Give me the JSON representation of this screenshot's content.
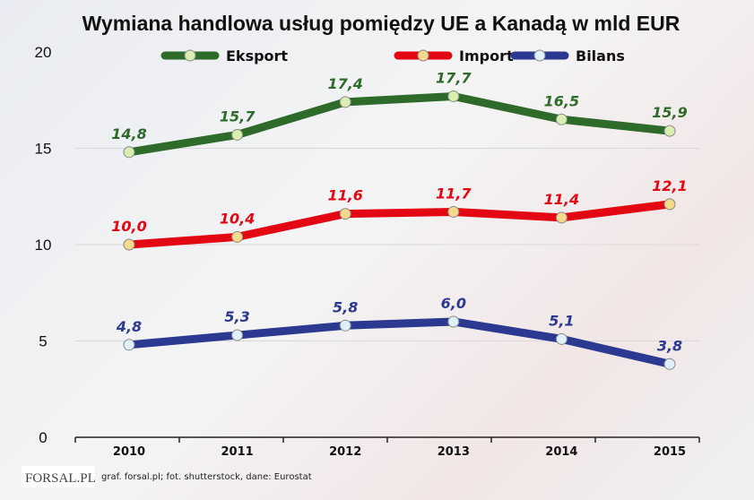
{
  "chart_data": {
    "type": "line",
    "title": "Wymiana handlowa usług pomiędzy UE a Kanadą w mld EUR",
    "categories": [
      "2010",
      "2011",
      "2012",
      "2013",
      "2014",
      "2015"
    ],
    "ylim": [
      0,
      20
    ],
    "yticks": [
      "0",
      "5",
      "10",
      "15",
      "20"
    ],
    "grid": true,
    "legend": "top",
    "series": [
      {
        "name": "Eksport",
        "color": "#2e6b2a",
        "marker": "#d9eeb0",
        "values": [
          14.8,
          15.7,
          17.4,
          17.7,
          16.5,
          15.9
        ],
        "labels": [
          "14,8",
          "15,7",
          "17,4",
          "17,7",
          "16,5",
          "15,9"
        ]
      },
      {
        "name": "Import",
        "color": "#e30613",
        "marker": "#f6d98a",
        "values": [
          10.0,
          10.4,
          11.6,
          11.7,
          11.4,
          12.1
        ],
        "labels": [
          "10,0",
          "10,4",
          "11,6",
          "11,7",
          "11,4",
          "12,1"
        ]
      },
      {
        "name": "Bilans",
        "color": "#2b3990",
        "marker": "#dff0fb",
        "values": [
          4.8,
          5.3,
          5.8,
          6.0,
          5.1,
          3.8
        ],
        "labels": [
          "4,8",
          "5,3",
          "5,8",
          "6,0",
          "5,1",
          "3,8"
        ]
      }
    ]
  },
  "footer": {
    "logo": "FORSAL.PL",
    "source": "graf. forsal.pl; fot. shutterstock, dane: Eurostat"
  }
}
